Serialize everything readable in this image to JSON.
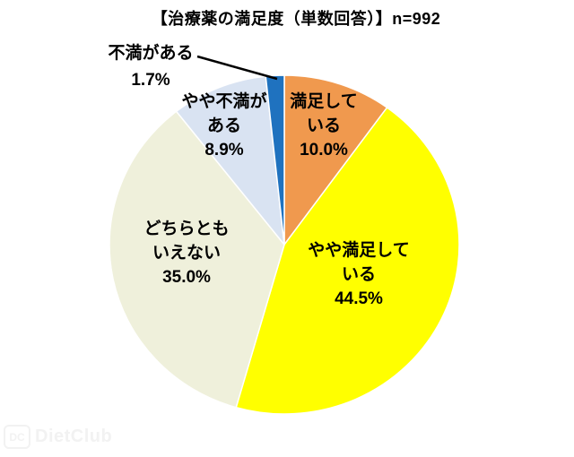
{
  "chart_data": {
    "type": "pie",
    "title": "【治療薬の満足度（単数回答）】n=992",
    "n": 992,
    "start_angle_deg": 0,
    "direction": "clockwise",
    "legend_position": "none",
    "slice_border_color": "#ffffff",
    "slices": [
      {
        "label": "満足している",
        "value_pct": 10.0,
        "color": "#F0994E",
        "label_lines": [
          "満足して",
          "いる",
          "10.0%"
        ]
      },
      {
        "label": "やや満足している",
        "value_pct": 44.5,
        "color": "#FFFF00",
        "label_lines": [
          "やや満足して",
          "いる",
          "44.5%"
        ]
      },
      {
        "label": "どちらともいえない",
        "value_pct": 35.0,
        "color": "#EFF0DB",
        "label_lines": [
          "どちらとも",
          "いえない",
          "35.0%"
        ]
      },
      {
        "label": "やや不満がある",
        "value_pct": 8.9,
        "color": "#D9E3F2",
        "label_lines": [
          "やや不満が",
          "ある",
          "8.9%"
        ]
      },
      {
        "label": "不満がある",
        "value_pct": 1.7,
        "color": "#1F72BF",
        "label_lines": [
          "不満がある",
          "1.7%"
        ]
      }
    ]
  },
  "watermark": {
    "badge": "DC",
    "text": "DietClub"
  }
}
